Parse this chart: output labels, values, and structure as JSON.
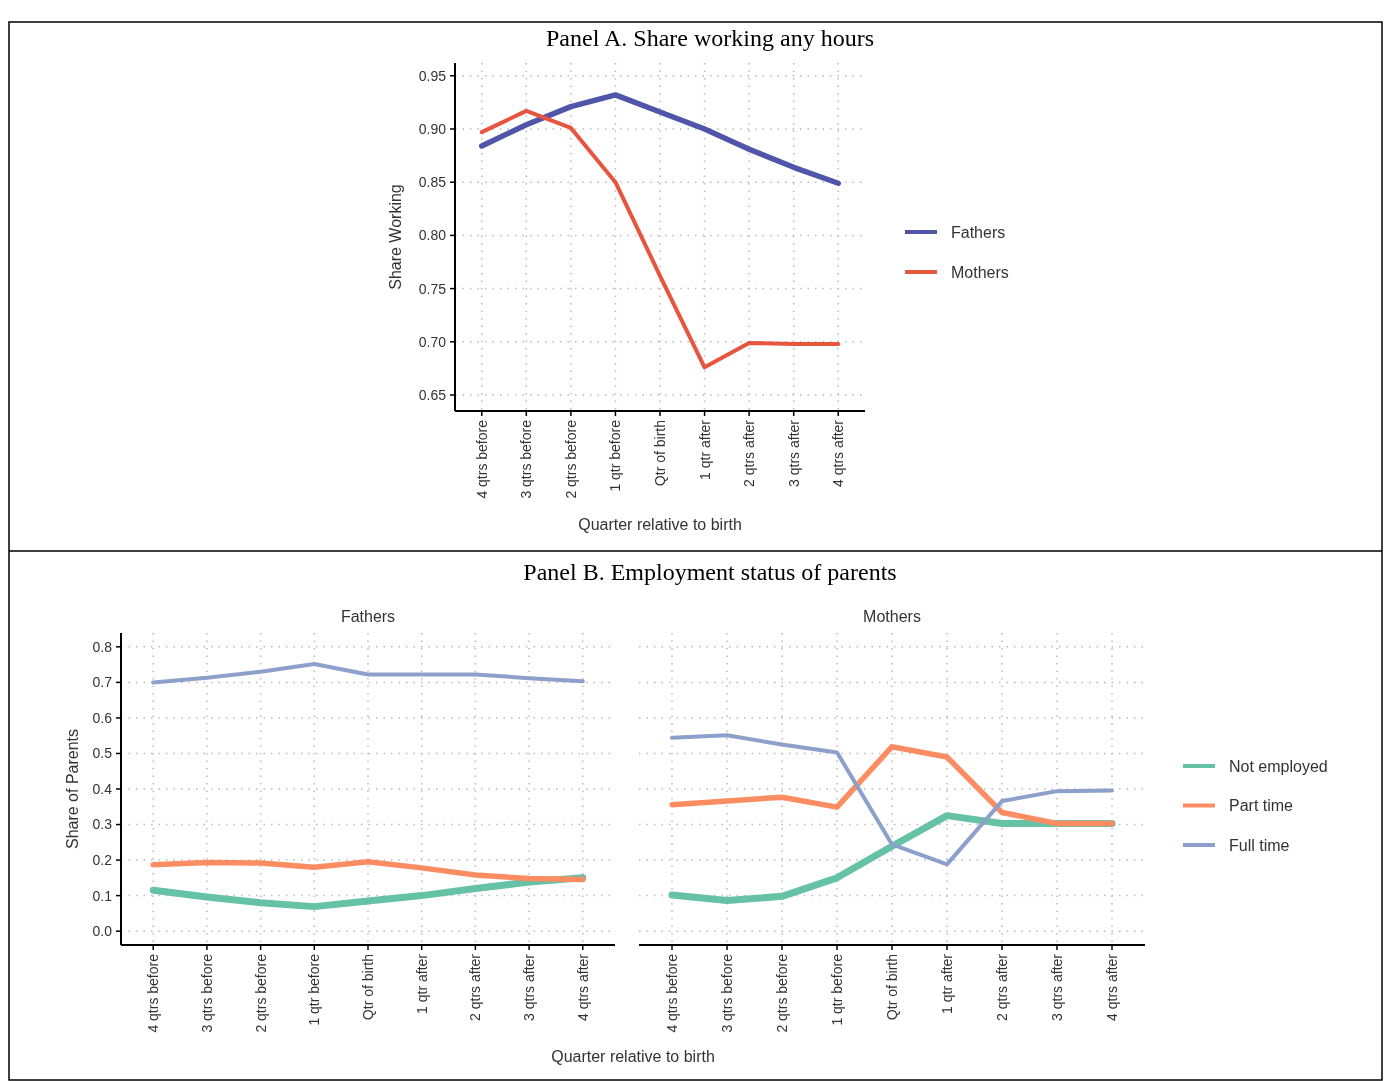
{
  "chart_data": [
    {
      "type": "line",
      "title": "Panel A. Share working any hours",
      "xlabel": "Quarter relative to birth",
      "ylabel": "Share Working",
      "categories": [
        "4 qtrs before",
        "3 qtrs before",
        "2 qtrs before",
        "1 qtr before",
        "Qtr of birth",
        "1 qtr after",
        "2 qtrs after",
        "3 qtrs after",
        "4 qtrs after"
      ],
      "series": [
        {
          "name": "Fathers",
          "color": "#4f55a8",
          "values": [
            0.884,
            0.904,
            0.921,
            0.932,
            0.916,
            0.9,
            0.881,
            0.864,
            0.849
          ]
        },
        {
          "name": "Mothers",
          "color": "#e8553f",
          "values": [
            0.897,
            0.917,
            0.901,
            0.85,
            0.762,
            0.676,
            0.699,
            0.698,
            0.698
          ]
        }
      ],
      "ylim": [
        0.635,
        0.962
      ],
      "yticks": [
        0.65,
        {
          "value": 0.7,
          "label": "0.70"
        },
        0.75,
        {
          "value": 0.8,
          "label": "0.80"
        },
        0.85,
        {
          "value": 0.9,
          "label": "0.90"
        },
        0.95
      ],
      "grid": true,
      "legend": "right"
    },
    {
      "type": "line",
      "title": "Panel B. Employment status of parents",
      "subtitle": "Fathers",
      "xlabel": "Quarter relative to birth",
      "ylabel": "Share of Parents",
      "categories": [
        "4 qtrs before",
        "3 qtrs before",
        "2 qtrs before",
        "1 qtr before",
        "Qtr of birth",
        "1 qtr after",
        "2 qtrs after",
        "3 qtrs after",
        "4 qtrs after"
      ],
      "series": [
        {
          "color": "#66c2a5",
          "values": [
            0.115,
            0.096,
            0.08,
            0.069,
            0.085,
            0.1,
            0.12,
            0.138,
            0.15
          ]
        },
        {
          "color": "#fc8d62",
          "values": [
            0.187,
            0.193,
            0.192,
            0.18,
            0.195,
            0.178,
            0.158,
            0.148,
            0.145
          ]
        },
        {
          "color": "#8da0cb",
          "values": [
            0.7,
            0.713,
            0.73,
            0.752,
            0.722,
            0.722,
            0.722,
            0.712,
            0.703
          ]
        }
      ],
      "ylim": [
        -0.039,
        0.839
      ],
      "yticks": [
        {
          "value": 0,
          "label": "0.0"
        },
        0.1,
        0.2,
        0.3,
        0.4,
        0.5,
        0.6,
        0.7,
        0.8
      ],
      "grid": true
    },
    {
      "type": "line",
      "subtitle": "Mothers",
      "categories": [
        "4 qtrs before",
        "3 qtrs before",
        "2 qtrs before",
        "1 qtr before",
        "Qtr of birth",
        "1 qtr after",
        "2 qtrs after",
        "3 qtrs after",
        "4 qtrs after"
      ],
      "series": [
        {
          "name": "Not employed",
          "color": "#66c2a5",
          "values": [
            0.102,
            0.086,
            0.098,
            0.15,
            0.239,
            0.325,
            0.303,
            0.303,
            0.303
          ]
        },
        {
          "name": "Part time",
          "color": "#fc8d62",
          "values": [
            0.356,
            0.366,
            0.377,
            0.349,
            0.519,
            0.49,
            0.334,
            0.303,
            0.303
          ]
        },
        {
          "name": "Full time",
          "color": "#8da0cb",
          "values": [
            0.544,
            0.551,
            0.525,
            0.503,
            0.244,
            0.188,
            0.366,
            0.394,
            0.396
          ]
        }
      ],
      "ylim": [
        -0.039,
        0.839
      ],
      "yticks": [
        0,
        0.1,
        0.2,
        0.3,
        0.4,
        0.5,
        0.6,
        0.7,
        0.8
      ],
      "grid": true,
      "legend": "right",
      "tick_labels": "x"
    }
  ]
}
